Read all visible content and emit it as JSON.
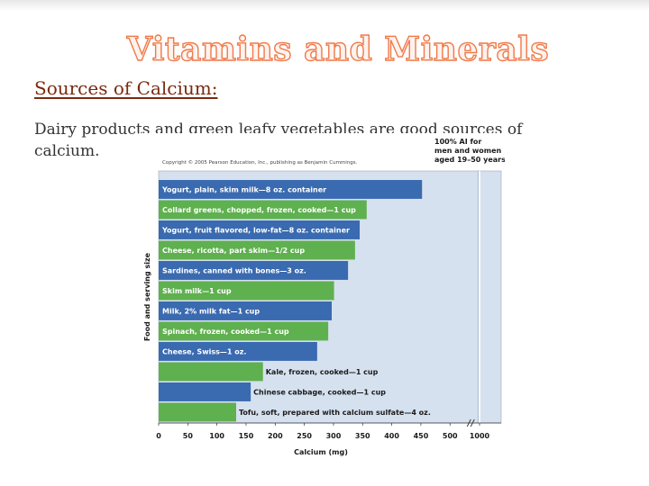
{
  "slide": {
    "title": "Vitamins and Minerals",
    "subtitle": "Sources of Calcium:",
    "body": "Dairy products and green leafy vegetables are good sources of calcium."
  },
  "colors": {
    "title_outline": "#f07a4a",
    "subtitle": "#7a2a10",
    "blue_bar": "#3a6ab0",
    "green_bar": "#5fb04f",
    "plot_bg": "#d6e1ef"
  },
  "chart_data": {
    "type": "bar",
    "orientation": "horizontal",
    "copyright": "Copyright © 2005 Pearson Education, Inc., publishing as Benjamin Cummings.",
    "xlabel": "Calcium (mg)",
    "ylabel": "Food and serving size",
    "x_ticks": [
      "0",
      "50",
      "100",
      "150",
      "200",
      "250",
      "300",
      "350",
      "400",
      "450",
      "500",
      "1000"
    ],
    "axis_break": "between 500 and 1000",
    "reference_line": {
      "value": 1000,
      "label": [
        "100% AI for",
        "men and women",
        "aged 19–50 years"
      ]
    },
    "bars": [
      {
        "label": "Yogurt, plain, skim milk—8 oz. container",
        "value": 452,
        "color": "blue"
      },
      {
        "label": "Collard greens, chopped, frozen, cooked—1 cup",
        "value": 357,
        "color": "green"
      },
      {
        "label": "Yogurt, fruit flavored, low-fat—8 oz. container",
        "value": 345,
        "color": "blue"
      },
      {
        "label": "Cheese, ricotta, part skim—1/2 cup",
        "value": 337,
        "color": "green"
      },
      {
        "label": "Sardines, canned with bones—3 oz.",
        "value": 325,
        "color": "blue"
      },
      {
        "label": "Skim milk—1 cup",
        "value": 301,
        "color": "green"
      },
      {
        "label": "Milk, 2% milk fat—1 cup",
        "value": 297,
        "color": "blue"
      },
      {
        "label": "Spinach, frozen, cooked—1 cup",
        "value": 291,
        "color": "green"
      },
      {
        "label": "Cheese, Swiss—1 oz.",
        "value": 272,
        "color": "blue"
      },
      {
        "label": "Kale, frozen, cooked—1 cup",
        "value": 179,
        "color": "green"
      },
      {
        "label": "Chinese cabbage, cooked—1 cup",
        "value": 158,
        "color": "blue"
      },
      {
        "label": "Tofu, soft, prepared with calcium sulfate—4 oz.",
        "value": 133,
        "color": "green"
      }
    ]
  }
}
